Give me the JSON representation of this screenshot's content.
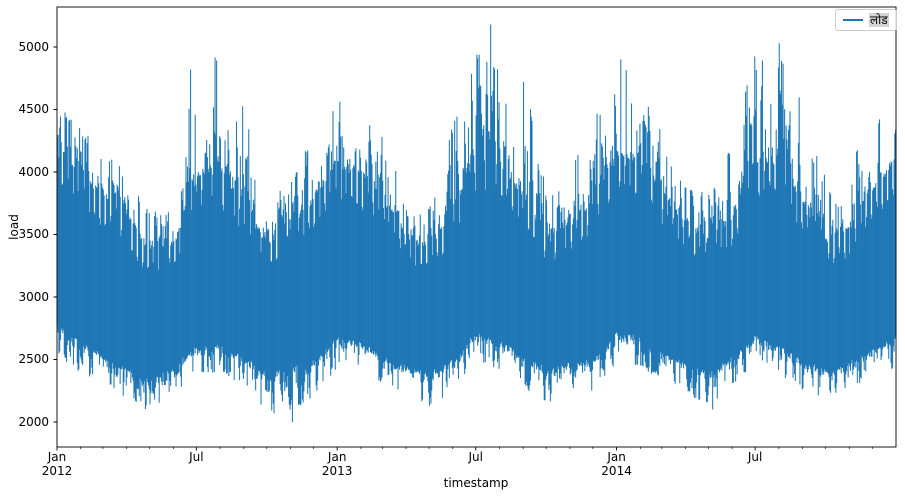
{
  "chart_data": {
    "type": "line",
    "title": "",
    "xlabel": "timestamp",
    "ylabel": "load",
    "legend": [
      {
        "label": "लोड",
        "color": "#1f77b4"
      }
    ],
    "background_color": "#ffffff",
    "spine_color": "#000000",
    "grid": false,
    "legend_position": "upper right",
    "ylim": [
      1800,
      5320
    ],
    "y_ticks": [
      2000,
      2500,
      3000,
      3500,
      4000,
      4500,
      5000
    ],
    "x_ticks": [
      {
        "line1": "Jan",
        "line2": "2012",
        "month_index": 0
      },
      {
        "line1": "Jul",
        "line2": "",
        "month_index": 6
      },
      {
        "line1": "Jan",
        "line2": "2013",
        "month_index": 12
      },
      {
        "line1": "Jul",
        "line2": "",
        "month_index": 18
      },
      {
        "line1": "Jan",
        "line2": "2014",
        "month_index": 24
      },
      {
        "line1": "Jul",
        "line2": "",
        "month_index": 30
      }
    ],
    "x_minor_ticks": "monthly",
    "x_range": [
      "2012-01-01",
      "2014-12-31"
    ],
    "x_span_days": 1096,
    "series": {
      "name": "लोड",
      "color": "#1f77b4",
      "description": "Dense sub-daily load series; values oscillate daily between lower and upper envelopes with weekly dips and seasonal summer/winter peaks. Envelope control points are monthly, from 2012-01 to 2015-01 (37 points).",
      "envelope_months_start": "2012-01",
      "envelope_points": 37,
      "upper_spike": [
        4500,
        4320,
        4150,
        3950,
        3650,
        3700,
        4870,
        4900,
        4500,
        3800,
        3900,
        4300,
        4550,
        4480,
        4250,
        3800,
        3700,
        4350,
        4950,
        4800,
        4700,
        3950,
        4000,
        4350,
        4900,
        4680,
        4300,
        3850,
        3800,
        4200,
        5000,
        4900,
        4550,
        3900,
        4050,
        4350,
        4550
      ],
      "upper_typical": [
        4150,
        3980,
        3820,
        3650,
        3380,
        3420,
        3950,
        4000,
        3750,
        3420,
        3550,
        3800,
        4050,
        3980,
        3800,
        3480,
        3400,
        3700,
        4150,
        4050,
        3820,
        3500,
        3580,
        3800,
        4150,
        4080,
        3850,
        3550,
        3450,
        3650,
        4100,
        4080,
        3750,
        3450,
        3550,
        3850,
        4100
      ],
      "lower_typical": [
        2780,
        2620,
        2520,
        2420,
        2320,
        2420,
        2600,
        2620,
        2500,
        2380,
        2420,
        2480,
        2680,
        2620,
        2520,
        2430,
        2380,
        2480,
        2700,
        2640,
        2520,
        2420,
        2450,
        2480,
        2720,
        2670,
        2560,
        2460,
        2400,
        2500,
        2680,
        2620,
        2480,
        2420,
        2460,
        2560,
        2680
      ],
      "lower_spike": [
        2560,
        2400,
        2330,
        2200,
        2090,
        2250,
        2400,
        2430,
        2300,
        2060,
        2120,
        2200,
        2480,
        2430,
        2330,
        2230,
        2140,
        2300,
        2510,
        2440,
        2320,
        2170,
        2260,
        2240,
        2500,
        2460,
        2360,
        2270,
        2150,
        2320,
        2500,
        2430,
        2280,
        2240,
        2270,
        2330,
        2450
      ],
      "anchors": [
        {
          "day": 174,
          "top": 4820
        },
        {
          "day": 307,
          "bottom": 2000
        },
        {
          "day": 566,
          "top": 5180
        },
        {
          "day": 609,
          "top": 4720
        },
        {
          "day": 736,
          "top": 4900
        },
        {
          "day": 856,
          "bottom": 2100
        },
        {
          "day": 943,
          "top": 5030
        }
      ],
      "observed_max": 5180,
      "observed_min": 2000
    }
  }
}
